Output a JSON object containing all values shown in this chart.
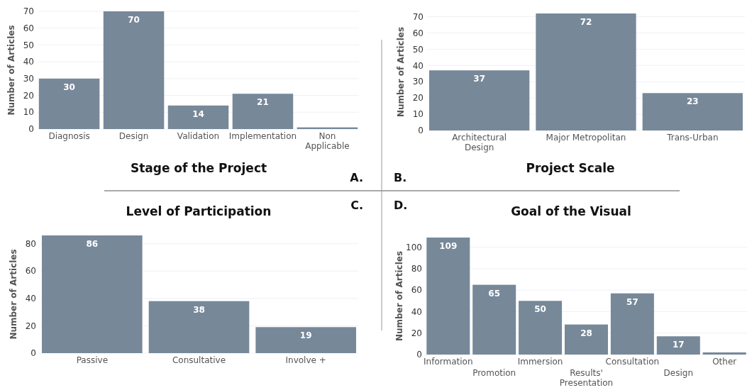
{
  "chart_data": [
    {
      "type": "bar",
      "title": "Stage of the Project",
      "ylabel": "Number of Articles",
      "categories": [
        "Diagnosis",
        "Design",
        "Validation",
        "Implementation",
        "Non Applicable"
      ],
      "values": [
        30,
        70,
        14,
        21,
        1
      ],
      "value_labels": [
        "30",
        "70",
        "14",
        "21",
        null
      ],
      "color": "#778899",
      "ylim": [
        0,
        70
      ],
      "yticks": [
        0,
        10,
        20,
        30,
        40,
        50,
        60,
        70
      ],
      "grid": "y",
      "annotations": [
        "A."
      ]
    },
    {
      "type": "bar",
      "title": "Project Scale",
      "ylabel": "Number of Articles",
      "categories": [
        "Architectural Design",
        "Major Metropolitan",
        "Trans-Urban"
      ],
      "values": [
        37,
        72,
        23
      ],
      "data_labels": true,
      "color": "#778899",
      "ylim": [
        0,
        72
      ],
      "yticks": [
        0,
        10,
        20,
        30,
        40,
        50,
        60,
        70
      ],
      "grid": "y",
      "annotations": [
        "B."
      ]
    },
    {
      "type": "bar",
      "title": "Level of Participation",
      "ylabel": "Number of Articles",
      "categories": [
        "Passive",
        "Consultative",
        "Involve +"
      ],
      "values": [
        86,
        38,
        19
      ],
      "data_labels": true,
      "color": "#778899",
      "ylim": [
        0,
        86
      ],
      "yticks": [
        0,
        20,
        40,
        60,
        80
      ],
      "grid": "y",
      "annotations": [
        "C."
      ]
    },
    {
      "type": "bar",
      "title": "Goal of the Visual",
      "ylabel": "Number of Articles",
      "categories": [
        "Information",
        "Promotion",
        "Immersion",
        "Results' Presentation",
        "Consultation",
        "Design",
        "Other"
      ],
      "values": [
        109,
        65,
        50,
        28,
        57,
        17,
        2
      ],
      "value_labels": [
        "109",
        "65",
        "50",
        "28",
        "57",
        "17",
        null
      ],
      "color": "#778899",
      "ylim": [
        0,
        109
      ],
      "yticks": [
        0,
        20,
        40,
        60,
        80,
        100
      ],
      "grid": "y",
      "annotations": [
        "D."
      ]
    }
  ]
}
